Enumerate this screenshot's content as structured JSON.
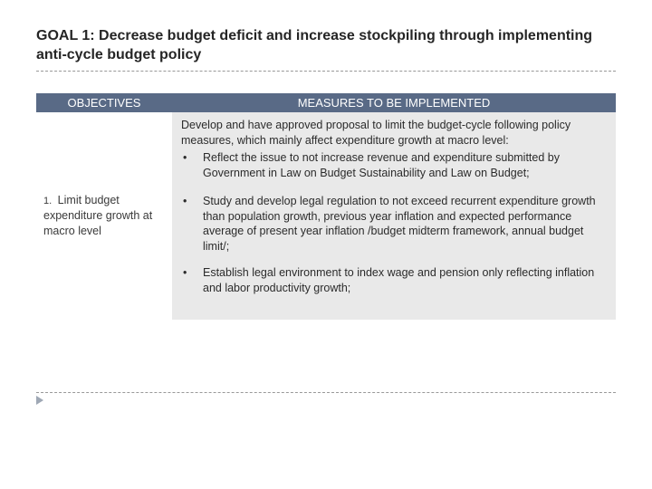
{
  "title": "GOAL 1: Decrease budget deficit and increase stockpiling through implementing anti-cycle budget policy",
  "headers": {
    "objectives": "OBJECTIVES",
    "measures": "MEASURES TO BE IMPLEMENTED"
  },
  "objective": {
    "number": "1.",
    "text": "Limit budget expenditure growth at macro level"
  },
  "measures": {
    "intro": "Develop and have approved proposal to limit the budget-cycle following policy measures, which mainly affect expenditure growth at macro level:",
    "items": [
      "Reflect the issue to not increase revenue and expenditure submitted by Government in Law on Budget Sustainability and Law on Budget;",
      "Study and develop legal regulation to not exceed recurrent expenditure growth than population growth, previous year inflation and expected performance average of present year inflation /budget midterm framework, annual budget limit/;",
      "Establish legal environment to index wage and pension only reflecting inflation and labor productivity growth;"
    ]
  },
  "colors": {
    "header_bg": "#596a86",
    "header_fg": "#ffffff",
    "measures_bg": "#e9e9e9",
    "text": "#262626",
    "divider": "#999999"
  }
}
